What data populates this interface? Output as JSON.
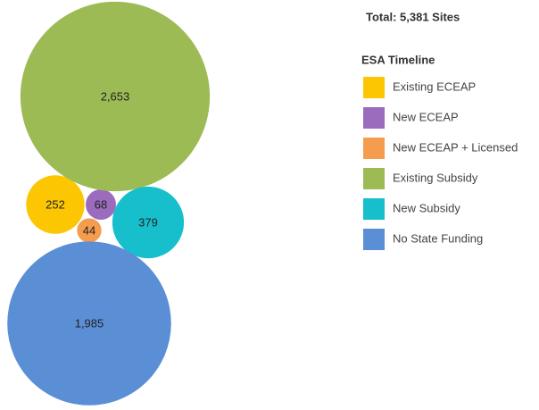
{
  "chart_data": {
    "type": "bubble",
    "total_label": "Total: 5,381 Sites",
    "legend_title": "ESA Timeline",
    "categories": [
      "Existing ECEAP",
      "New ECEAP",
      "New ECEAP + Licensed",
      "Existing Subsidy",
      "New Subsidy",
      "No State Funding"
    ],
    "values": [
      252,
      68,
      44,
      2653,
      379,
      1985
    ],
    "value_labels": [
      "252",
      "68",
      "44",
      "2,653",
      "379",
      "1,985"
    ],
    "colors": [
      "#fcc602",
      "#9b6bbd",
      "#f59d4f",
      "#9dbb55",
      "#17bfcc",
      "#5a8fd6"
    ],
    "legend": "right"
  }
}
